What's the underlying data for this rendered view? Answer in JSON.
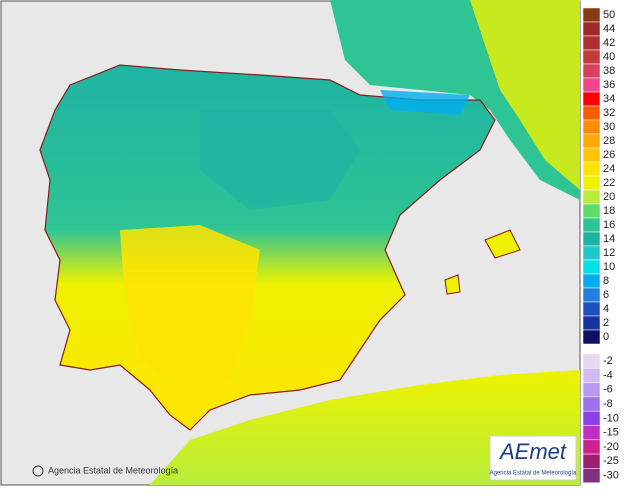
{
  "legend": [
    {
      "label": "50",
      "color": "#8b3a12"
    },
    {
      "label": "44",
      "color": "#9e2a2a"
    },
    {
      "label": "42",
      "color": "#b22f2f"
    },
    {
      "label": "40",
      "color": "#c43b3b"
    },
    {
      "label": "38",
      "color": "#d8405e"
    },
    {
      "label": "36",
      "color": "#f0458c"
    },
    {
      "label": "34",
      "color": "#ff0000"
    },
    {
      "label": "32",
      "color": "#ff5a00"
    },
    {
      "label": "30",
      "color": "#ff8c00"
    },
    {
      "label": "28",
      "color": "#ffa800"
    },
    {
      "label": "26",
      "color": "#ffc400"
    },
    {
      "label": "24",
      "color": "#ffe400"
    },
    {
      "label": "22",
      "color": "#eef200"
    },
    {
      "label": "20",
      "color": "#b8ee3a"
    },
    {
      "label": "18",
      "color": "#5edc6a"
    },
    {
      "label": "16",
      "color": "#2ec494"
    },
    {
      "label": "14",
      "color": "#1fb3a4"
    },
    {
      "label": "12",
      "color": "#1ec8c8"
    },
    {
      "label": "10",
      "color": "#00e0e6"
    },
    {
      "label": "8",
      "color": "#00aef0"
    },
    {
      "label": "6",
      "color": "#1e80e0"
    },
    {
      "label": "4",
      "color": "#2050c0"
    },
    {
      "label": "2",
      "color": "#1830a0"
    },
    {
      "label": "0",
      "color": "#101060"
    }
  ],
  "legend_negative": [
    {
      "label": "-2",
      "color": "#e6d8f2"
    },
    {
      "label": "-4",
      "color": "#d2baf2"
    },
    {
      "label": "-6",
      "color": "#ba9af0"
    },
    {
      "label": "-8",
      "color": "#a070ee"
    },
    {
      "label": "-10",
      "color": "#8e40e6"
    },
    {
      "label": "-15",
      "color": "#c030c0"
    },
    {
      "label": "-20",
      "color": "#d02090"
    },
    {
      "label": "-25",
      "color": "#a02070"
    },
    {
      "label": "-30",
      "color": "#803080"
    }
  ],
  "copyright": "Agencia Estatal de Meteorología",
  "logo": {
    "name": "AEmet",
    "subtitle": "Agencia Estatal de Meteorología"
  }
}
